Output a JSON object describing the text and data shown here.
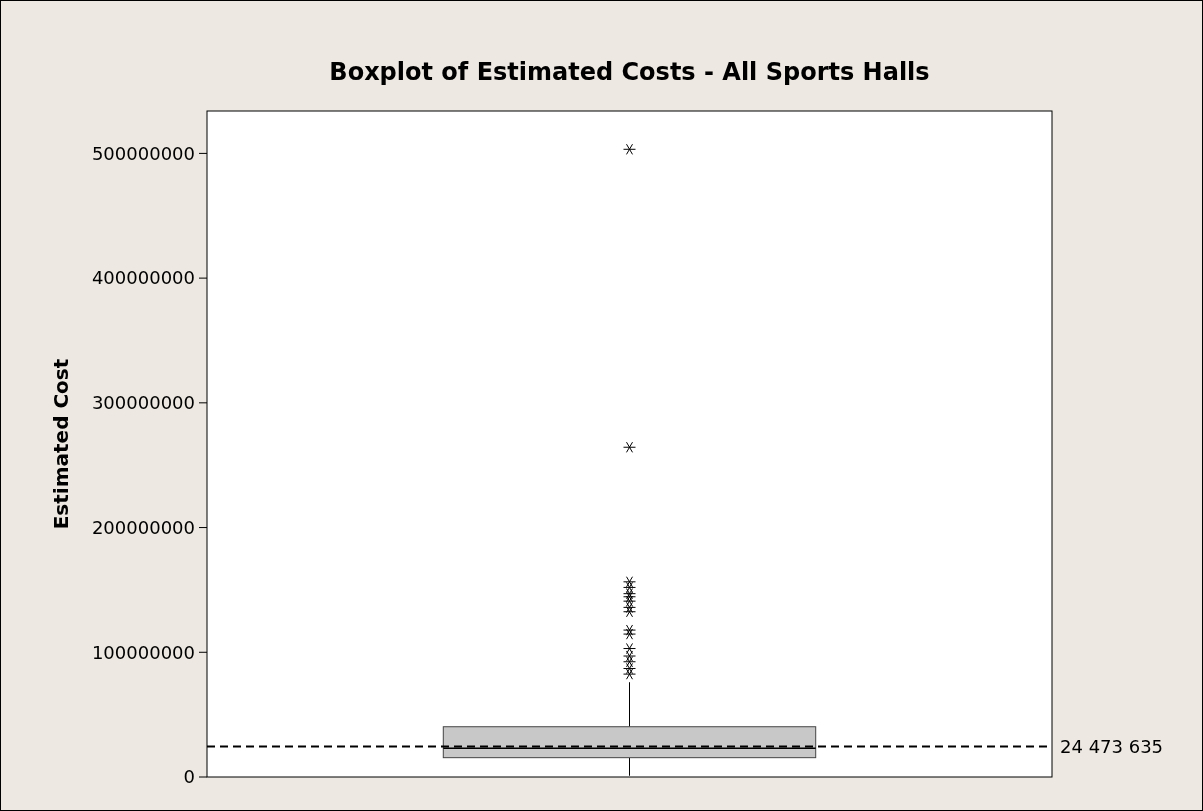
{
  "chart_data": {
    "type": "box",
    "title": "Boxplot of Estimated Costs - All Sports Halls",
    "ylabel": "Estimated Cost",
    "categories": [
      null
    ],
    "boxes": [
      {
        "low": 1000000,
        "q1": 15500000,
        "median": 23000000,
        "q3": 40300000,
        "high": 76000000,
        "outliers": [
          82500000,
          87000000,
          92400000,
          97000000,
          103000000,
          114600000,
          117800000,
          132500000,
          136000000,
          141000000,
          144500000,
          147000000,
          152000000,
          156500000,
          264400000,
          503300000
        ]
      }
    ],
    "ylim": [
      0,
      534000000
    ],
    "yticks": [
      0,
      100000000,
      200000000,
      300000000,
      400000000,
      500000000
    ],
    "ref_lines": [
      {
        "axis": "y",
        "value": 24473635,
        "label": "24 473 635",
        "line_style": "dashed",
        "color": "#000000"
      }
    ],
    "color": "#c8c8c8",
    "marker": "star",
    "grid": false
  }
}
